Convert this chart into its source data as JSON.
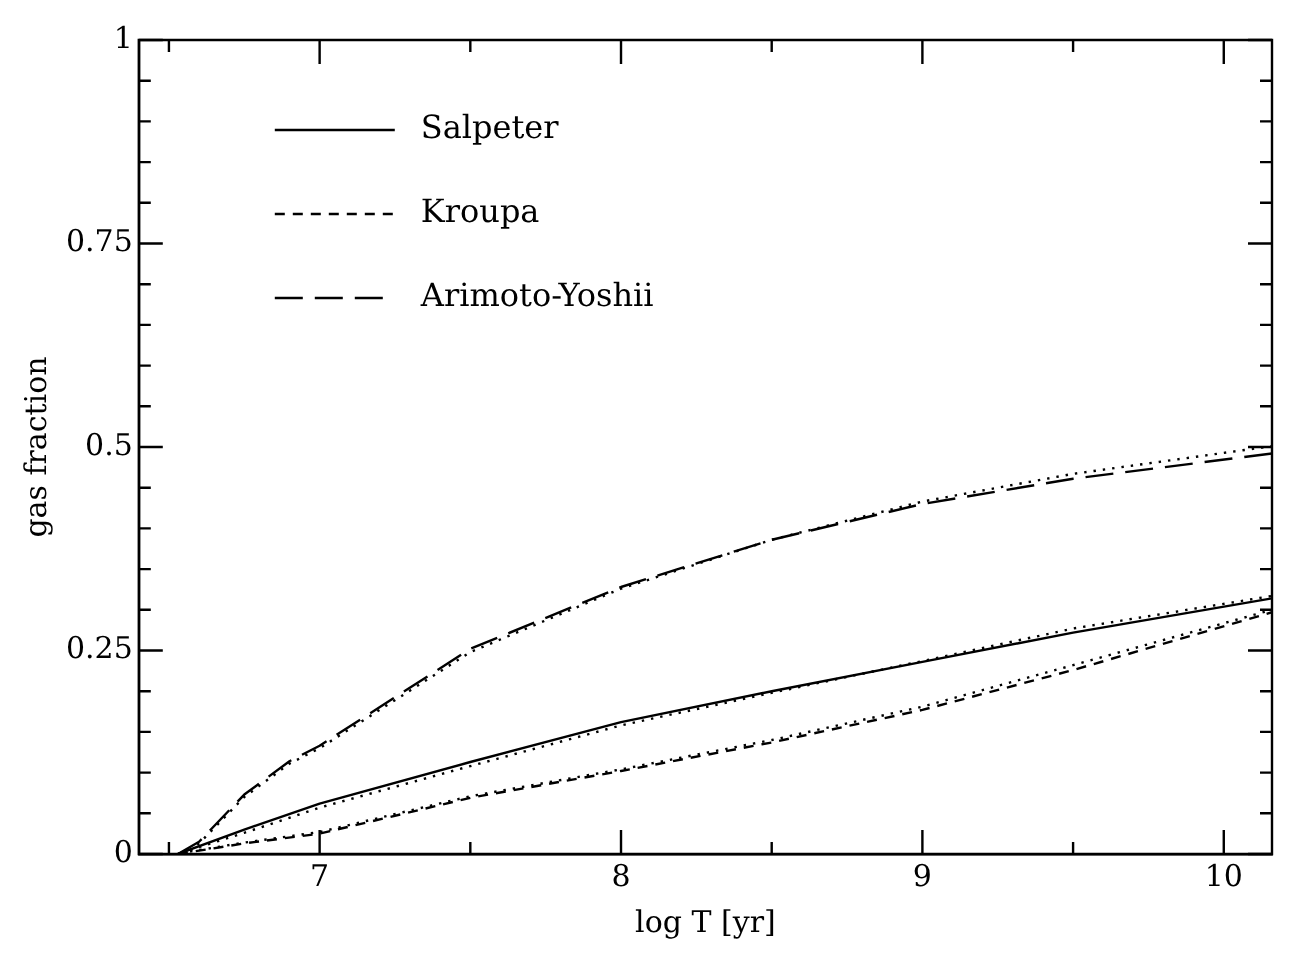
{
  "chart_data": {
    "type": "line",
    "xlabel": "log T [yr]",
    "ylabel": "gas fraction",
    "xlim": [
      6.4,
      10.16
    ],
    "ylim": [
      0,
      1
    ],
    "xticks": [
      {
        "value": 6.5,
        "label": null
      },
      7,
      {
        "value": 7.5,
        "label": null
      },
      8,
      {
        "value": 8.5,
        "label": null
      },
      9,
      {
        "value": 9.5,
        "label": null
      },
      10
    ],
    "yticks": [
      0,
      {
        "value": 0.05,
        "label": null
      },
      {
        "value": 0.1,
        "label": null
      },
      {
        "value": 0.15,
        "label": null
      },
      {
        "value": 0.2,
        "label": null
      },
      0.25,
      {
        "value": 0.3,
        "label": null
      },
      {
        "value": 0.35,
        "label": null
      },
      {
        "value": 0.4,
        "label": null
      },
      {
        "value": 0.45,
        "label": null
      },
      0.5,
      {
        "value": 0.55,
        "label": null
      },
      {
        "value": 0.6,
        "label": null
      },
      {
        "value": 0.65,
        "label": null
      },
      {
        "value": 0.7,
        "label": null
      },
      0.75,
      {
        "value": 0.8,
        "label": null
      },
      {
        "value": 0.85,
        "label": null
      },
      {
        "value": 0.9,
        "label": null
      },
      {
        "value": 0.95,
        "label": null
      },
      1
    ],
    "grid": false,
    "legend": "top left",
    "marker": "none",
    "series": [
      {
        "name": "Salpeter",
        "color": "#000000",
        "line_style": "solid",
        "x": [
          6.53,
          6.75,
          7,
          7.5,
          8,
          8.5,
          9,
          9.5,
          10.16
        ],
        "values": [
          0,
          0.03,
          0.062,
          0.113,
          0.162,
          0.2,
          0.236,
          0.272,
          0.314
        ]
      },
      {
        "name": "Kroupa",
        "color": "#000000",
        "line_style": "dashed",
        "x": [
          6.53,
          6.75,
          7,
          7.5,
          8,
          8.5,
          9,
          9.5,
          10.16
        ],
        "values": [
          0,
          0.013,
          0.025,
          0.069,
          0.102,
          0.137,
          0.177,
          0.226,
          0.297
        ]
      },
      {
        "name": "Arimoto-Yoshii",
        "color": "#000000",
        "line_style": "longdash",
        "x": [
          6.53,
          6.6,
          6.75,
          6.9,
          7,
          7.5,
          8,
          8.5,
          9,
          9.5,
          10.16
        ],
        "values": [
          0,
          0.015,
          0.073,
          0.114,
          0.133,
          0.252,
          0.328,
          0.386,
          0.43,
          0.461,
          0.492
        ]
      },
      {
        "color": "#000000",
        "line_style": "dotted",
        "x": [
          6.57,
          6.75,
          7,
          7.5,
          8,
          8.5,
          9,
          9.5,
          10.16
        ],
        "values": [
          0.005,
          0.026,
          0.057,
          0.108,
          0.158,
          0.198,
          0.237,
          0.277,
          0.317
        ]
      },
      {
        "color": "#000000",
        "line_style": "dotted",
        "x": [
          6.57,
          6.75,
          7,
          7.5,
          8,
          8.5,
          9,
          9.5,
          10.16
        ],
        "values": [
          0.003,
          0.014,
          0.027,
          0.071,
          0.104,
          0.14,
          0.181,
          0.232,
          0.3
        ]
      },
      {
        "color": "#000000",
        "line_style": "dotted",
        "x": [
          6.57,
          6.6,
          6.75,
          6.9,
          7,
          7.5,
          8,
          8.5,
          9,
          9.5,
          10.16
        ],
        "values": [
          0.004,
          0.013,
          0.07,
          0.111,
          0.13,
          0.248,
          0.326,
          0.386,
          0.433,
          0.467,
          0.501
        ]
      }
    ]
  }
}
